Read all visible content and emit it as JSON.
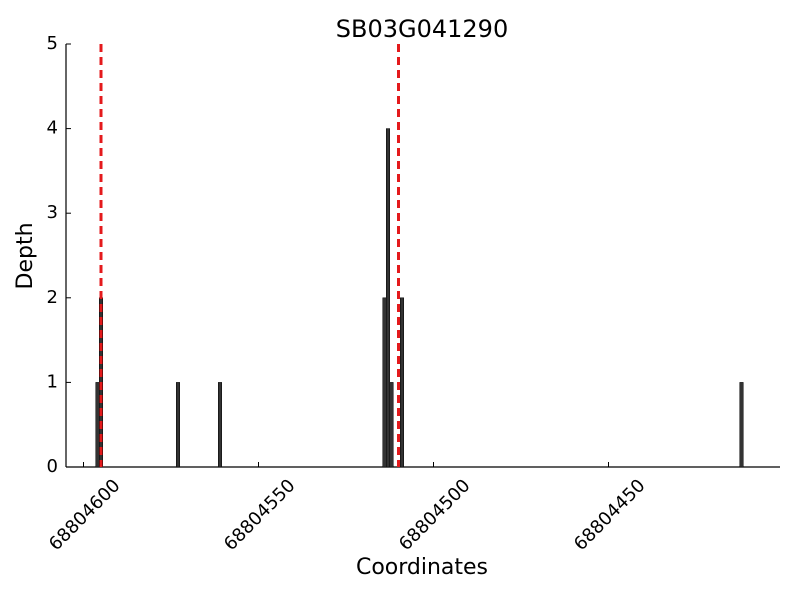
{
  "chart_data": {
    "type": "bar",
    "title": "SB03G041290",
    "x_label": "Coordinates",
    "y_label": "Depth",
    "x": [
      68804596,
      68804595,
      68804573,
      68804561,
      68804514,
      68804513,
      68804512,
      68804509,
      68804412
    ],
    "values": [
      1,
      2,
      1,
      1,
      2,
      4,
      1,
      2,
      1
    ],
    "color": "#333333",
    "vlines": [
      68804595,
      68804510
    ],
    "vline_color": "#e41a1c",
    "xlim": [
      68804605,
      68804401
    ],
    "xticks": [
      68804600,
      68804550,
      68804500,
      68804450
    ],
    "ylim": [
      0,
      5
    ],
    "yticks": [
      0,
      1,
      2,
      3,
      4,
      5
    ],
    "grid": false
  }
}
